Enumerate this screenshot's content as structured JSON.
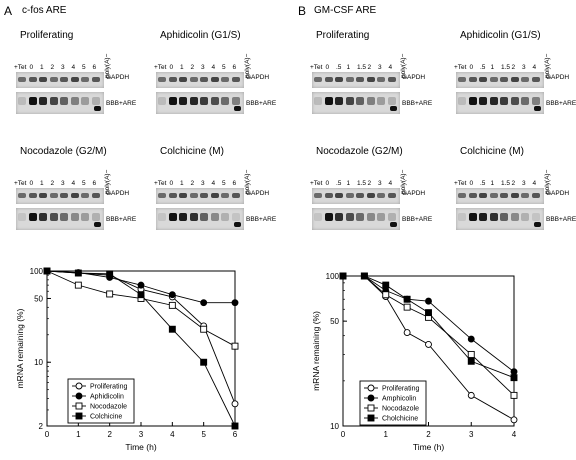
{
  "panelA": {
    "letter": "A",
    "title": "c-fos ARE",
    "lanes": [
      "+Tet",
      "0",
      "1",
      "2",
      "3",
      "4",
      "5",
      "6",
      "poly(A)−"
    ],
    "blots": [
      {
        "title": "Proliferating"
      },
      {
        "title": "Aphidicolin (G1/S)"
      },
      {
        "title": "Nocodazole (G2/M)"
      },
      {
        "title": "Colchicine (M)"
      }
    ],
    "band_gapdh": "GAPDH",
    "band_bbb": "BBB+ARE"
  },
  "panelB": {
    "letter": "B",
    "title": "GM-CSF ARE",
    "lanes": [
      "+Tet",
      "0",
      ".5",
      "1",
      "1.5",
      "2",
      "3",
      "4",
      "poly(A)−"
    ],
    "blots": [
      {
        "title": "Proliferating"
      },
      {
        "title": "Aphidicolin (G1/S)"
      },
      {
        "title": "Nocodazole (G2/M)"
      },
      {
        "title": "Colchicine (M)"
      }
    ],
    "band_gapdh": "GAPDH",
    "band_bbb": "BBB+ARE"
  },
  "chart_data": [
    {
      "type": "line",
      "ylabel": "mRNA remaining (%)",
      "xlabel": "Time (h)",
      "yscale": "log",
      "xlim": [
        0,
        6
      ],
      "ylim": [
        2,
        100
      ],
      "yticks": [
        2,
        10,
        50,
        100
      ],
      "xticks": [
        0,
        1,
        2,
        3,
        4,
        5,
        6
      ],
      "legend_position": "bottom-left",
      "series": [
        {
          "name": "Proliferating",
          "marker": "open-circle",
          "x": [
            0,
            1,
            2,
            3,
            4,
            5,
            6
          ],
          "values": [
            100,
            95,
            90,
            63,
            52,
            25,
            3.5
          ]
        },
        {
          "name": "Aphidicolin",
          "marker": "filled-circle",
          "x": [
            0,
            1,
            2,
            3,
            4,
            5,
            6
          ],
          "values": [
            100,
            96,
            85,
            70,
            55,
            45,
            45
          ]
        },
        {
          "name": "Nocodazole",
          "marker": "open-square",
          "x": [
            0,
            1,
            2,
            3,
            4,
            5,
            6
          ],
          "values": [
            100,
            70,
            56,
            50,
            42,
            23,
            15
          ]
        },
        {
          "name": "Colchicine",
          "marker": "filled-square",
          "x": [
            0,
            1,
            2,
            3,
            4,
            5,
            6
          ],
          "values": [
            100,
            95,
            93,
            55,
            23,
            10,
            2
          ]
        }
      ]
    },
    {
      "type": "line",
      "ylabel": "mRNA remaining (%)",
      "xlabel": "Time (h)",
      "yscale": "log",
      "xlim": [
        0,
        4
      ],
      "ylim": [
        10,
        100
      ],
      "yticks": [
        10,
        50,
        100
      ],
      "xticks": [
        0,
        1,
        2,
        3,
        4
      ],
      "legend_position": "bottom-left",
      "series": [
        {
          "name": "Proliferating",
          "marker": "open-circle",
          "x": [
            0,
            0.5,
            1,
            1.5,
            2,
            3,
            4
          ],
          "values": [
            100,
            100,
            73,
            42,
            35,
            16,
            11
          ]
        },
        {
          "name": "Amphicolin",
          "marker": "filled-circle",
          "x": [
            0,
            0.5,
            1,
            1.5,
            2,
            3,
            4
          ],
          "values": [
            100,
            100,
            80,
            70,
            68,
            38,
            23
          ]
        },
        {
          "name": "Nocodazole",
          "marker": "open-square",
          "x": [
            0,
            0.5,
            1,
            1.5,
            2,
            3,
            4
          ],
          "values": [
            100,
            100,
            75,
            62,
            53,
            30,
            16
          ]
        },
        {
          "name": "Cholchicine",
          "marker": "filled-square",
          "x": [
            0,
            0.5,
            1,
            1.5,
            2,
            3,
            4
          ],
          "values": [
            100,
            100,
            87,
            70,
            57,
            27,
            21
          ]
        }
      ]
    }
  ]
}
